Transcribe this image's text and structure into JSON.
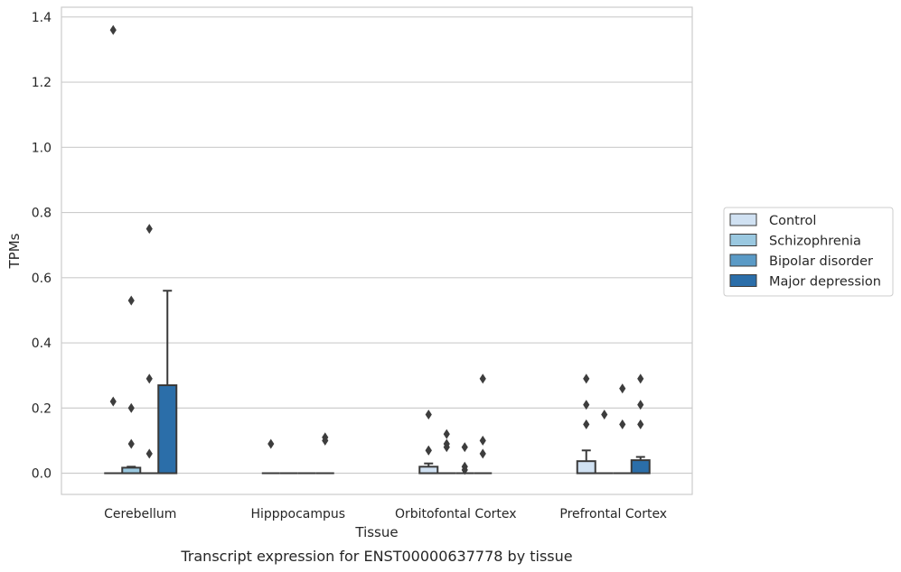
{
  "caption": "Transcript expression for ENST00000637778 by tissue",
  "chart_data": {
    "type": "box",
    "title": "",
    "xlabel": "Tissue",
    "ylabel": "TPMs",
    "ylim": [
      -0.065,
      1.43
    ],
    "yticks": [
      0.0,
      0.2,
      0.4,
      0.6,
      0.8,
      1.0,
      1.2,
      1.4
    ],
    "ytick_labels": [
      "0.0",
      "0.2",
      "0.4",
      "0.6",
      "0.8",
      "1.0",
      "1.2",
      "1.4"
    ],
    "grid": "horizontal",
    "legend_placement": "right",
    "categories": [
      "Cerebellum",
      "Hipppocampus",
      "Orbitofontal Cortex",
      "Prefrontal Cortex"
    ],
    "series": [
      {
        "name": "Control",
        "color": "#d0e1f2",
        "boxes": [
          {
            "q1": 0,
            "median": 0,
            "q3": 0,
            "whisker_low": 0,
            "whisker_high": 0,
            "outliers": [
              1.36,
              0.22
            ]
          },
          {
            "q1": 0,
            "median": 0,
            "q3": 0,
            "whisker_low": 0,
            "whisker_high": 0,
            "outliers": [
              0.09
            ]
          },
          {
            "q1": 0,
            "median": 0,
            "q3": 0.02,
            "whisker_low": 0,
            "whisker_high": 0.03,
            "outliers": [
              0.18,
              0.07,
              0.07
            ]
          },
          {
            "q1": 0,
            "median": 0,
            "q3": 0.037,
            "whisker_low": 0,
            "whisker_high": 0.07,
            "outliers": [
              0.29,
              0.21,
              0.15
            ]
          }
        ]
      },
      {
        "name": "Schizophrenia",
        "color": "#9ac8e0",
        "boxes": [
          {
            "q1": 0,
            "median": 0,
            "q3": 0.017,
            "whisker_low": 0,
            "whisker_high": 0.02,
            "outliers": [
              0.53,
              0.2,
              0.09
            ]
          },
          {
            "q1": 0,
            "median": 0,
            "q3": 0,
            "whisker_low": 0,
            "whisker_high": 0,
            "outliers": []
          },
          {
            "q1": 0,
            "median": 0,
            "q3": 0,
            "whisker_low": 0,
            "whisker_high": 0,
            "outliers": [
              0.12,
              0.09,
              0.08
            ]
          },
          {
            "q1": 0,
            "median": 0,
            "q3": 0,
            "whisker_low": 0,
            "whisker_high": 0,
            "outliers": [
              0.18
            ]
          }
        ]
      },
      {
        "name": "Bipolar disorder",
        "color": "#5a9ac6",
        "boxes": [
          {
            "q1": 0,
            "median": 0,
            "q3": 0,
            "whisker_low": 0,
            "whisker_high": 0,
            "outliers": [
              0.75,
              0.29,
              0.06
            ]
          },
          {
            "q1": 0,
            "median": 0,
            "q3": 0,
            "whisker_low": 0,
            "whisker_high": 0,
            "outliers": []
          },
          {
            "q1": 0,
            "median": 0,
            "q3": 0,
            "whisker_low": 0,
            "whisker_high": 0,
            "outliers": [
              0.08,
              0.02,
              0.01
            ]
          },
          {
            "q1": 0,
            "median": 0,
            "q3": 0,
            "whisker_low": 0,
            "whisker_high": 0,
            "outliers": [
              0.26,
              0.15
            ]
          }
        ]
      },
      {
        "name": "Major depression",
        "color": "#2b6ea9",
        "boxes": [
          {
            "q1": 0,
            "median": 0,
            "q3": 0.27,
            "whisker_low": 0,
            "whisker_high": 0.56,
            "outliers": []
          },
          {
            "q1": 0,
            "median": 0,
            "q3": 0,
            "whisker_low": 0,
            "whisker_high": 0,
            "outliers": [
              0.11,
              0.1
            ]
          },
          {
            "q1": 0,
            "median": 0,
            "q3": 0,
            "whisker_low": 0,
            "whisker_high": 0,
            "outliers": [
              0.29,
              0.1,
              0.06
            ]
          },
          {
            "q1": 0,
            "median": 0,
            "q3": 0.04,
            "whisker_low": 0,
            "whisker_high": 0.05,
            "outliers": [
              0.29,
              0.21,
              0.15
            ]
          }
        ]
      }
    ]
  }
}
